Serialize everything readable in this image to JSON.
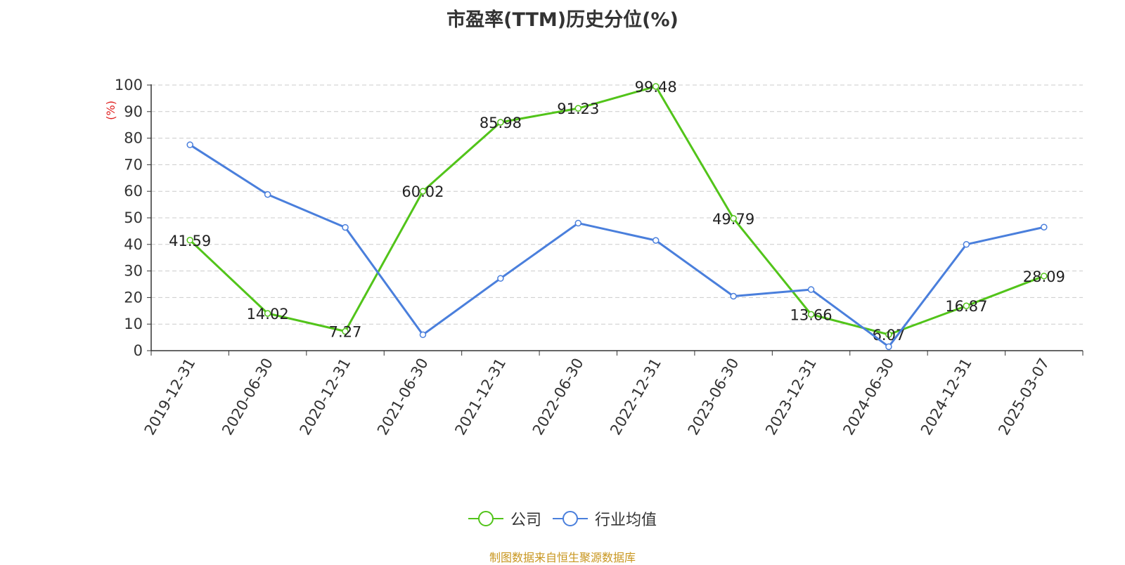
{
  "chart_data": {
    "type": "line",
    "title": "市盈率(TTM)历史分位(%)",
    "ylabel": "(%)",
    "ylim": [
      0,
      100
    ],
    "yticks": [
      "0",
      "10",
      "20",
      "30",
      "40",
      "50",
      "60",
      "70",
      "80",
      "90",
      "100"
    ],
    "categories": [
      "2019-12-31",
      "2020-06-30",
      "2020-12-31",
      "2021-06-30",
      "2021-12-31",
      "2022-06-30",
      "2022-12-31",
      "2023-06-30",
      "2023-12-31",
      "2024-06-30",
      "2024-12-31",
      "2025-03-07"
    ],
    "series": [
      {
        "name": "公司",
        "color": "#52c41a",
        "values": [
          41.59,
          14.02,
          7.27,
          60.02,
          85.98,
          91.23,
          99.48,
          49.79,
          13.66,
          6.07,
          16.87,
          28.09
        ],
        "labels": [
          "41.59",
          "14.02",
          "7.27",
          "60.02",
          "85.98",
          "91.23",
          "99.48",
          "49.79",
          "13.66",
          "6.07",
          "16.87",
          "28.09"
        ]
      },
      {
        "name": "行业均值",
        "color": "#4a7fdc",
        "values": [
          77.5,
          58.8,
          46.4,
          6.0,
          27.2,
          48.0,
          41.5,
          20.5,
          23.0,
          1.5,
          40.0,
          46.5
        ]
      }
    ],
    "grid": true,
    "legend": "bottom-center"
  },
  "source_note": "制图数据来自恒生聚源数据库"
}
